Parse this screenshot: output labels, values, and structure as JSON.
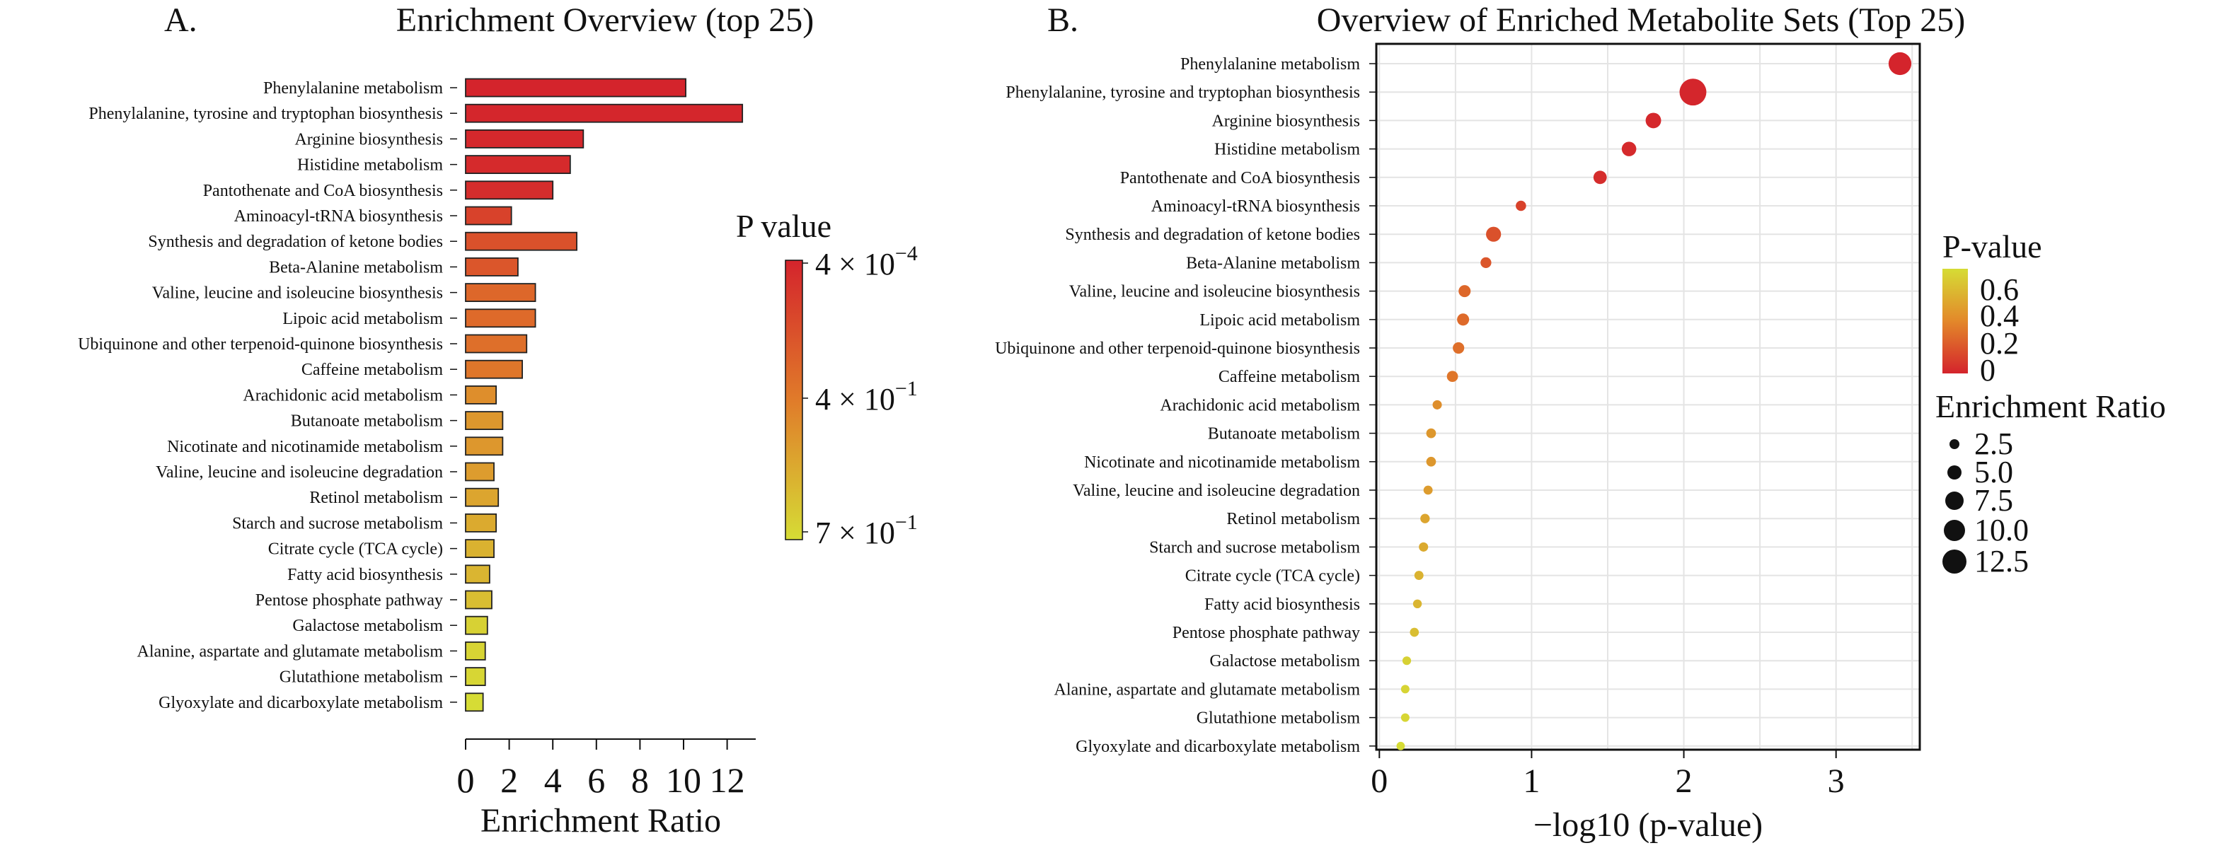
{
  "panel_a": {
    "label": "A.",
    "title": "Enrichment Overview (top 25)",
    "legend_title": "P value",
    "legend_ticks": [
      {
        "mantissa": "4 × 10",
        "exp": "−4"
      },
      {
        "mantissa": "4 × 10",
        "exp": "−1"
      },
      {
        "mantissa": "7 × 10",
        "exp": "−1"
      }
    ],
    "colors": {
      "low_p": "#d4242c",
      "mid_p": "#e07b2a",
      "high_p": "#d6dc35"
    }
  },
  "panel_b": {
    "label": "B.",
    "title": "Overview of Enriched Metabolite Sets (Top 25)",
    "color_legend_title": "P-value",
    "color_legend_ticks": [
      "0.6",
      "0.4",
      "0.2",
      "0"
    ],
    "size_legend_title": "Enrichment Ratio",
    "size_legend_ticks": [
      "2.5",
      "5.0",
      "7.5",
      "10.0",
      "12.5"
    ]
  },
  "chart_data": [
    {
      "type": "bar",
      "orientation": "horizontal",
      "title": "Enrichment Overview (top 25)",
      "xlabel": "Enrichment Ratio",
      "ylabel": "",
      "xlim": [
        0,
        13
      ],
      "xticks": [
        "0",
        "2",
        "4",
        "6",
        "8",
        "10",
        "12"
      ],
      "categories": [
        "Phenylalanine metabolism",
        "Phenylalanine, tyrosine and tryptophan biosynthesis",
        "Arginine biosynthesis",
        "Histidine metabolism",
        "Pantothenate and CoA biosynthesis",
        "Aminoacyl-tRNA biosynthesis",
        "Synthesis and degradation of ketone bodies",
        "Beta-Alanine metabolism",
        "Valine, leucine and isoleucine biosynthesis",
        "Lipoic acid metabolism",
        "Ubiquinone and other terpenoid-quinone biosynthesis",
        "Caffeine metabolism",
        "Arachidonic acid metabolism",
        "Butanoate metabolism",
        "Nicotinate and nicotinamide metabolism",
        "Valine, leucine and isoleucine degradation",
        "Retinol metabolism",
        "Starch and sucrose metabolism",
        "Citrate cycle (TCA cycle)",
        "Fatty acid biosynthesis",
        "Pentose phosphate pathway",
        "Galactose metabolism",
        "Alanine, aspartate and glutamate metabolism",
        "Glutathione metabolism",
        "Glyoxylate and dicarboxylate metabolism"
      ],
      "values": [
        10.1,
        12.7,
        5.4,
        4.8,
        4.0,
        2.1,
        5.1,
        2.4,
        3.2,
        3.2,
        2.8,
        2.6,
        1.4,
        1.7,
        1.7,
        1.3,
        1.5,
        1.4,
        1.3,
        1.1,
        1.2,
        1.0,
        0.9,
        0.9,
        0.8
      ],
      "p_values": [
        0.0004,
        0.009,
        0.016,
        0.023,
        0.036,
        0.12,
        0.18,
        0.2,
        0.27,
        0.28,
        0.3,
        0.33,
        0.42,
        0.45,
        0.45,
        0.47,
        0.5,
        0.52,
        0.55,
        0.56,
        0.59,
        0.66,
        0.67,
        0.68,
        0.7
      ],
      "legend": "right"
    },
    {
      "type": "scatter",
      "title": "Overview of Enriched Metabolite Sets (Top 25)",
      "xlabel": "−log10 (p-value)",
      "ylabel": "",
      "xlim": [
        -0.02,
        3.55
      ],
      "xticks": [
        "0",
        "1",
        "2",
        "3"
      ],
      "grid": true,
      "categories": [
        "Phenylalanine metabolism",
        "Phenylalanine, tyrosine and tryptophan biosynthesis",
        "Arginine biosynthesis",
        "Histidine metabolism",
        "Pantothenate and CoA biosynthesis",
        "Aminoacyl-tRNA biosynthesis",
        "Synthesis and degradation of ketone bodies",
        "Beta-Alanine metabolism",
        "Valine, leucine and isoleucine biosynthesis",
        "Lipoic acid metabolism",
        "Ubiquinone and other terpenoid-quinone biosynthesis",
        "Caffeine metabolism",
        "Arachidonic acid metabolism",
        "Butanoate metabolism",
        "Nicotinate and nicotinamide metabolism",
        "Valine, leucine and isoleucine degradation",
        "Retinol metabolism",
        "Starch and sucrose metabolism",
        "Citrate cycle (TCA cycle)",
        "Fatty acid biosynthesis",
        "Pentose phosphate pathway",
        "Galactose metabolism",
        "Alanine, aspartate and glutamate metabolism",
        "Glutathione metabolism",
        "Glyoxylate and dicarboxylate metabolism"
      ],
      "x": [
        3.42,
        2.06,
        1.8,
        1.64,
        1.45,
        0.93,
        0.75,
        0.7,
        0.56,
        0.55,
        0.52,
        0.48,
        0.38,
        0.34,
        0.34,
        0.32,
        0.3,
        0.29,
        0.26,
        0.25,
        0.23,
        0.18,
        0.17,
        0.17,
        0.14
      ],
      "enrichment_ratio": [
        10.1,
        12.7,
        5.4,
        4.8,
        4.0,
        2.1,
        5.1,
        2.4,
        3.2,
        3.2,
        2.8,
        2.6,
        1.4,
        1.7,
        1.7,
        1.3,
        1.5,
        1.4,
        1.3,
        1.1,
        1.2,
        1.0,
        0.9,
        0.9,
        0.8
      ],
      "p_values": [
        0.0004,
        0.009,
        0.016,
        0.023,
        0.036,
        0.12,
        0.18,
        0.2,
        0.27,
        0.28,
        0.3,
        0.33,
        0.42,
        0.45,
        0.45,
        0.47,
        0.5,
        0.52,
        0.55,
        0.56,
        0.59,
        0.66,
        0.67,
        0.68,
        0.7
      ],
      "legend": "right"
    }
  ]
}
